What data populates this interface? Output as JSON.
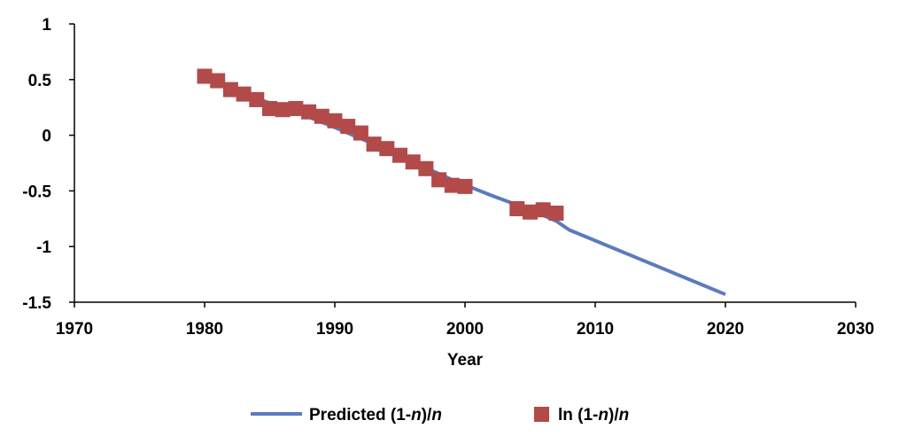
{
  "chart_data": {
    "type": "line",
    "xlabel": "Year",
    "ylabel": "",
    "xlim": [
      1970,
      2030
    ],
    "ylim": [
      -1.5,
      1
    ],
    "x_ticks": [
      "1970",
      "1980",
      "1990",
      "2000",
      "2010",
      "2020",
      "2030"
    ],
    "y_ticks": [
      "1",
      "0.5",
      "0",
      "-0.5",
      "-1",
      "-1.5"
    ],
    "grid": false,
    "legend_position": "bottom",
    "series": [
      {
        "name": "Predicted (1-n)/n",
        "legend_parts": [
          "Predicted (1-",
          "n",
          ")/",
          "n"
        ],
        "kind": "line",
        "color": "#5b7bbf",
        "x": [
          1980,
          1984,
          1987,
          1990,
          1993,
          1996,
          1999,
          2002,
          2005,
          2007,
          2008,
          2014,
          2020
        ],
        "y": [
          0.52,
          0.33,
          0.21,
          0.07,
          -0.08,
          -0.24,
          -0.4,
          -0.54,
          -0.67,
          -0.77,
          -0.85,
          -1.14,
          -1.43
        ]
      },
      {
        "name": "ln (1-n)/n",
        "legend_parts": [
          "ln (1-",
          "n",
          ")/",
          "n"
        ],
        "kind": "markers",
        "color": "#b24a4a",
        "x": [
          1980,
          1981,
          1982,
          1983,
          1984,
          1985,
          1986,
          1987,
          1988,
          1989,
          1990,
          1991,
          1992,
          1993,
          1994,
          1995,
          1996,
          1997,
          1998,
          1999,
          2000,
          2004,
          2005,
          2006,
          2007
        ],
        "y": [
          0.53,
          0.49,
          0.41,
          0.37,
          0.32,
          0.24,
          0.23,
          0.24,
          0.21,
          0.17,
          0.13,
          0.08,
          0.02,
          -0.08,
          -0.12,
          -0.18,
          -0.24,
          -0.3,
          -0.4,
          -0.45,
          -0.46,
          -0.66,
          -0.69,
          -0.67,
          -0.7
        ]
      }
    ]
  }
}
